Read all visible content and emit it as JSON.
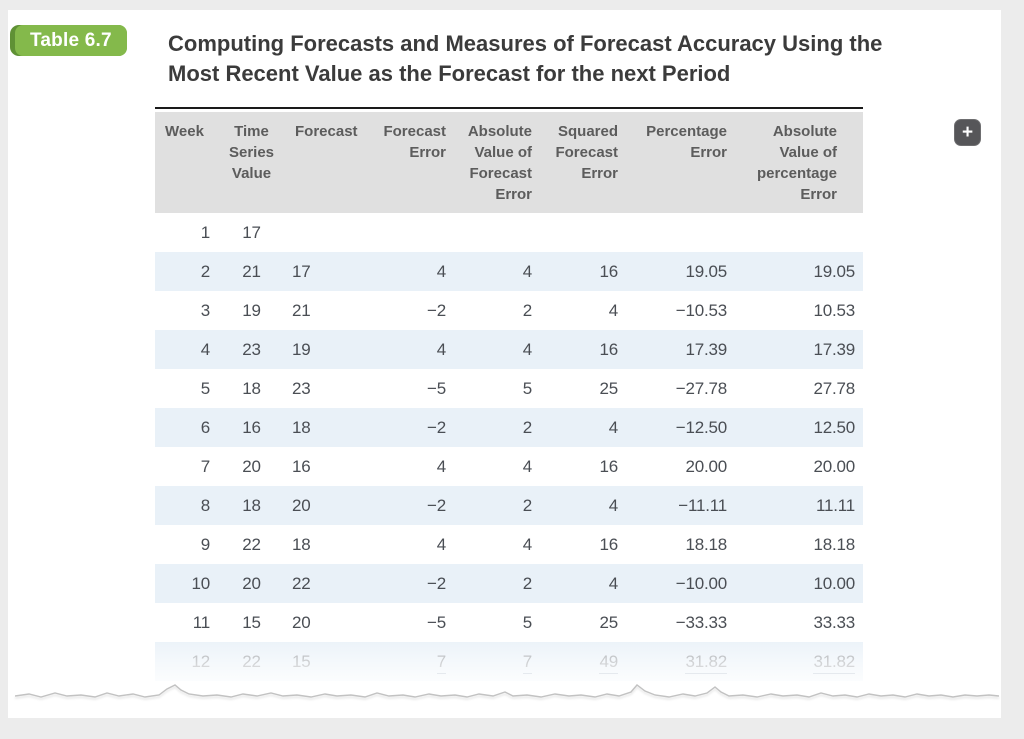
{
  "badge": {
    "label": "Table 6.7"
  },
  "title": {
    "text": "Computing Forecasts and Measures of Forecast Accuracy Using the\nMost Recent Value as the Forecast for the next Period"
  },
  "toolbar": {
    "expand_icon_name": "plus-icon",
    "expand_icon": "+"
  },
  "colors": {
    "page_bg": "#ececec",
    "card_bg": "#ffffff",
    "badge_green": "#84b94b",
    "badge_dark": "#5f9135",
    "title_color": "#3b3b3b",
    "header_bg": "#e0e0e0",
    "header_text": "#5c5c5c",
    "body_text": "#4a4e54",
    "row_alt": "#e9f1f8",
    "faded_text": "#999da2",
    "underline": "#a3b1c2",
    "btn_bg": "#565659",
    "torn_line": "#c2c2c2"
  },
  "table": {
    "columns": [
      {
        "id": "week",
        "label": "Week",
        "header_align": "left",
        "cell_align": "right"
      },
      {
        "id": "time_series_value",
        "label": "Time\nSeries\nValue",
        "header_align": "center",
        "cell_align": "center"
      },
      {
        "id": "forecast",
        "label": "Forecast",
        "header_align": "left",
        "cell_align": "left"
      },
      {
        "id": "forecast_error",
        "label": "Forecast\nError",
        "header_align": "right",
        "cell_align": "right"
      },
      {
        "id": "abs_forecast_error",
        "label": "Absolute\nValue of\nForecast\nError",
        "header_align": "right",
        "cell_align": "right"
      },
      {
        "id": "squared_forecast_error",
        "label": "Squared\nForecast\nError",
        "header_align": "right",
        "cell_align": "right"
      },
      {
        "id": "percentage_error",
        "label": "Percentage\nError",
        "header_align": "right",
        "cell_align": "right"
      },
      {
        "id": "abs_percentage_error",
        "label": "Absolute\nValue of\npercentage\nError",
        "header_align": "right",
        "cell_align": "right"
      }
    ],
    "rows": [
      {
        "cells": [
          "1",
          "17",
          "",
          "",
          "",
          "",
          "",
          ""
        ]
      },
      {
        "cells": [
          "2",
          "21",
          "17",
          "4",
          "4",
          "16",
          "19.05",
          "19.05"
        ]
      },
      {
        "cells": [
          "3",
          "19",
          "21",
          "−2",
          "2",
          "4",
          "−10.53",
          "10.53"
        ]
      },
      {
        "cells": [
          "4",
          "23",
          "19",
          "4",
          "4",
          "16",
          "17.39",
          "17.39"
        ]
      },
      {
        "cells": [
          "5",
          "18",
          "23",
          "−5",
          "5",
          "25",
          "−27.78",
          "27.78"
        ]
      },
      {
        "cells": [
          "6",
          "16",
          "18",
          "−2",
          "2",
          "4",
          "−12.50",
          "12.50"
        ]
      },
      {
        "cells": [
          "7",
          "20",
          "16",
          "4",
          "4",
          "16",
          "20.00",
          "20.00"
        ]
      },
      {
        "cells": [
          "8",
          "18",
          "20",
          "−2",
          "2",
          "4",
          "−11.11",
          "11.11"
        ]
      },
      {
        "cells": [
          "9",
          "22",
          "18",
          "4",
          "4",
          "16",
          "18.18",
          "18.18"
        ]
      },
      {
        "cells": [
          "10",
          "20",
          "22",
          "−2",
          "2",
          "4",
          "−10.00",
          "10.00"
        ]
      },
      {
        "cells": [
          "11",
          "15",
          "20",
          "−5",
          "5",
          "25",
          "−33.33",
          "33.33"
        ]
      },
      {
        "cells": [
          "12",
          "22",
          "15",
          "7",
          "7",
          "49",
          "31.82",
          "31.82"
        ],
        "faded": true,
        "sum_underline": [
          3,
          4,
          5,
          6,
          7
        ]
      }
    ]
  }
}
